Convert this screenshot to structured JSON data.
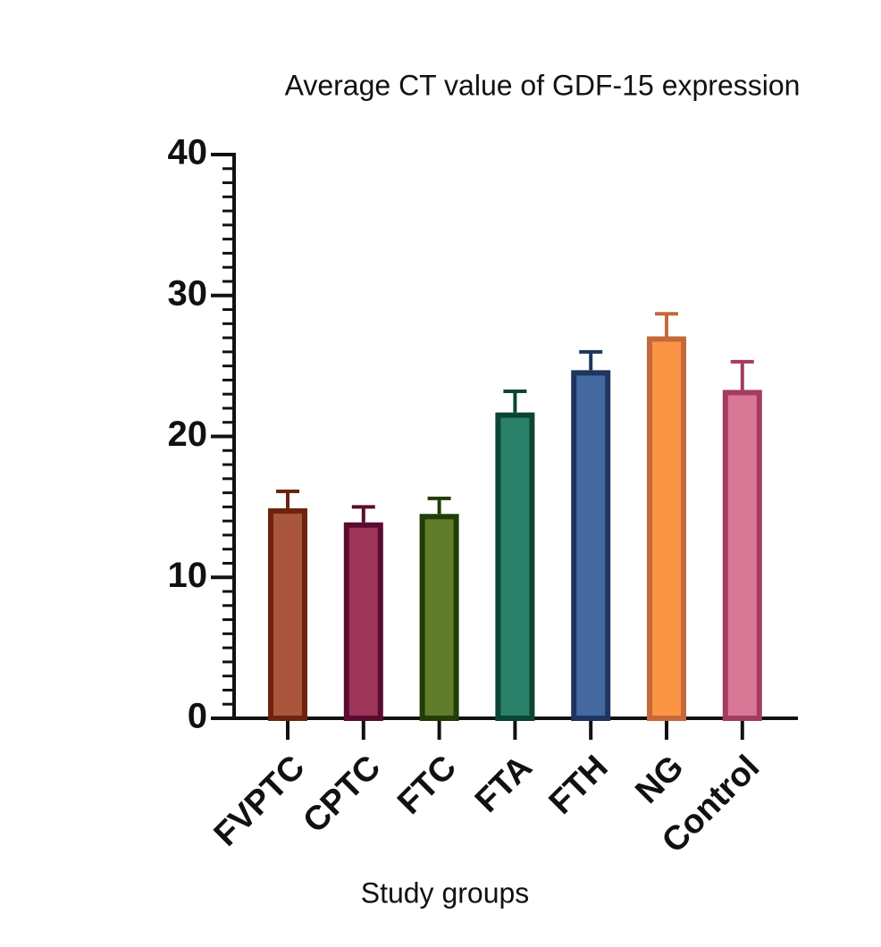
{
  "chart_data": {
    "type": "bar",
    "title": "Average CT value of GDF-15 expression",
    "x_label": "Study groups",
    "categories": [
      "FVPTC",
      "CPTC",
      "FTC",
      "FTA",
      "FTH",
      "NG",
      "Control"
    ],
    "values": [
      14.9,
      13.9,
      14.5,
      21.7,
      24.7,
      27.1,
      23.3
    ],
    "errors": [
      1.2,
      1.1,
      1.1,
      1.5,
      1.3,
      1.6,
      2.0
    ],
    "colors": [
      "#a9563c",
      "#9e3558",
      "#5e7c2a",
      "#2b806a",
      "#4369a0",
      "#fb9545",
      "#d97796"
    ],
    "edge_colors": [
      "#6b2410",
      "#5a0c2e",
      "#223d08",
      "#0b4535",
      "#1f3560",
      "#c4693a",
      "#a33c60"
    ],
    "ylim": [
      0,
      40
    ],
    "yticks": [
      0,
      10,
      20,
      30,
      40
    ],
    "minor_ticks": true,
    "grid": false
  }
}
